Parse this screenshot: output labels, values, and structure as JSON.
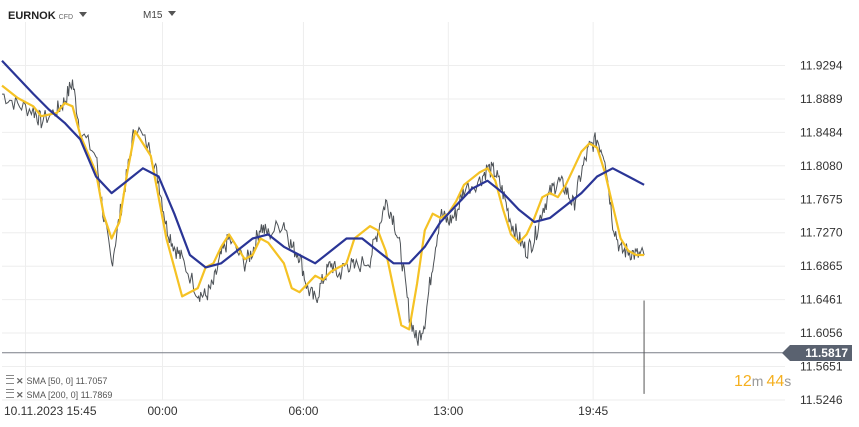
{
  "header": {
    "symbol": "EURNOK",
    "type": "CFD",
    "timeframe": "M15"
  },
  "legend": [
    {
      "label": "SMA [50, 0] 11.7057"
    },
    {
      "label": "SMA [200, 0] 11.7869"
    }
  ],
  "current_price": "11.5817",
  "timer": {
    "minutes": "12",
    "m": "m",
    "seconds": "44",
    "s": "s"
  },
  "colors": {
    "candles": "#3a3f45",
    "sma50": "#f5c224",
    "sma200": "#2a3596",
    "price_line": "#7a7f87"
  },
  "chart_data": {
    "type": "line",
    "title": "EURNOK",
    "ylim": [
      11.5246,
      11.9699
    ],
    "y_ticks": [
      "11.9294",
      "11.8889",
      "11.8484",
      "11.8080",
      "11.7675",
      "11.7270",
      "11.6865",
      "11.6461",
      "11.6056",
      "11.5651",
      "11.5246"
    ],
    "y_tick_values": [
      11.9294,
      11.8889,
      11.8484,
      11.808,
      11.7675,
      11.727,
      11.6865,
      11.6461,
      11.6056,
      11.5651,
      11.5246
    ],
    "x_ticks": [
      "10.11.2023 15:45",
      "00:00",
      "06:00",
      "13:00",
      "19:45"
    ],
    "x_range": [
      0,
      100
    ],
    "x_tick_positions": [
      3,
      20.5,
      38.5,
      57,
      75.5
    ],
    "series": [
      {
        "name": "Price",
        "x": [
          0,
          2,
          4,
          5,
          7,
          8,
          9,
          10,
          12,
          13,
          14,
          15,
          16,
          17,
          19,
          20,
          21,
          22,
          23,
          25,
          26,
          27,
          28,
          29,
          31,
          32,
          33,
          34,
          36,
          37,
          38,
          39,
          40,
          41,
          42,
          43,
          44,
          45,
          47,
          48,
          49,
          50,
          51,
          52,
          53,
          54,
          55,
          56,
          57,
          58,
          59,
          61,
          62,
          63,
          64,
          65,
          66,
          67,
          68,
          69,
          70,
          71,
          72,
          73,
          74,
          75,
          76,
          77,
          78,
          79,
          80,
          81,
          82
        ],
        "y": [
          11.895,
          11.882,
          11.875,
          11.862,
          11.875,
          11.886,
          11.91,
          11.85,
          11.82,
          11.745,
          11.69,
          11.745,
          11.8,
          11.858,
          11.825,
          11.79,
          11.735,
          11.71,
          11.695,
          11.655,
          11.65,
          11.665,
          11.7,
          11.72,
          11.69,
          11.705,
          11.735,
          11.725,
          11.74,
          11.71,
          11.7,
          11.66,
          11.645,
          11.67,
          11.69,
          11.675,
          11.69,
          11.685,
          11.695,
          11.73,
          11.765,
          11.745,
          11.7,
          11.63,
          11.595,
          11.62,
          11.69,
          11.75,
          11.74,
          11.75,
          11.78,
          11.79,
          11.805,
          11.8,
          11.775,
          11.74,
          11.72,
          11.705,
          11.72,
          11.755,
          11.775,
          11.79,
          11.78,
          11.76,
          11.8,
          11.83,
          11.84,
          11.82,
          11.74,
          11.705,
          11.705,
          11.7,
          11.7
        ]
      },
      {
        "name": "SMA [50, 0]",
        "x": [
          0,
          2,
          4,
          5,
          7,
          8,
          9,
          10,
          12,
          13,
          14,
          15,
          16,
          17,
          19,
          20,
          21,
          22,
          23,
          25,
          26,
          27,
          28,
          29,
          31,
          32,
          33,
          34,
          36,
          37,
          38,
          39,
          40,
          41,
          42,
          43,
          44,
          45,
          47,
          48,
          49,
          50,
          51,
          52,
          53,
          54,
          55,
          56,
          57,
          58,
          59,
          61,
          62,
          63,
          64,
          65,
          66,
          67,
          68,
          69,
          70,
          71,
          72,
          73,
          74,
          75,
          76,
          77,
          78,
          79,
          80,
          81,
          82
        ],
        "y": [
          11.905,
          11.89,
          11.88,
          11.868,
          11.872,
          11.884,
          11.88,
          11.845,
          11.8,
          11.748,
          11.72,
          11.74,
          11.8,
          11.85,
          11.82,
          11.77,
          11.72,
          11.685,
          11.65,
          11.66,
          11.685,
          11.69,
          11.71,
          11.725,
          11.695,
          11.7,
          11.72,
          11.715,
          11.69,
          11.66,
          11.655,
          11.665,
          11.675,
          11.67,
          11.68,
          11.685,
          11.69,
          11.72,
          11.735,
          11.73,
          11.705,
          11.66,
          11.615,
          11.61,
          11.665,
          11.73,
          11.75,
          11.745,
          11.75,
          11.765,
          11.785,
          11.8,
          11.805,
          11.79,
          11.755,
          11.725,
          11.715,
          11.725,
          11.745,
          11.77,
          11.775,
          11.77,
          11.785,
          11.805,
          11.825,
          11.835,
          11.83,
          11.8,
          11.76,
          11.72,
          11.705,
          11.7,
          11.7
        ]
      },
      {
        "name": "SMA [200, 0]",
        "x": [
          0,
          2,
          4,
          6,
          8,
          10,
          12,
          14,
          16,
          18,
          20,
          22,
          24,
          26,
          28,
          30,
          32,
          34,
          36,
          38,
          40,
          42,
          44,
          46,
          48,
          50,
          52,
          54,
          56,
          58,
          60,
          62,
          64,
          66,
          68,
          70,
          72,
          74,
          76,
          78,
          80,
          82
        ],
        "y": [
          11.935,
          11.915,
          11.895,
          11.876,
          11.86,
          11.84,
          11.795,
          11.775,
          11.79,
          11.805,
          11.795,
          11.75,
          11.7,
          11.685,
          11.69,
          11.705,
          11.72,
          11.725,
          11.71,
          11.7,
          11.69,
          11.705,
          11.72,
          11.72,
          11.705,
          11.69,
          11.69,
          11.71,
          11.74,
          11.76,
          11.78,
          11.79,
          11.775,
          11.755,
          11.74,
          11.745,
          11.76,
          11.775,
          11.795,
          11.805,
          11.795,
          11.785
        ]
      }
    ],
    "current_price_value": 11.5817
  }
}
